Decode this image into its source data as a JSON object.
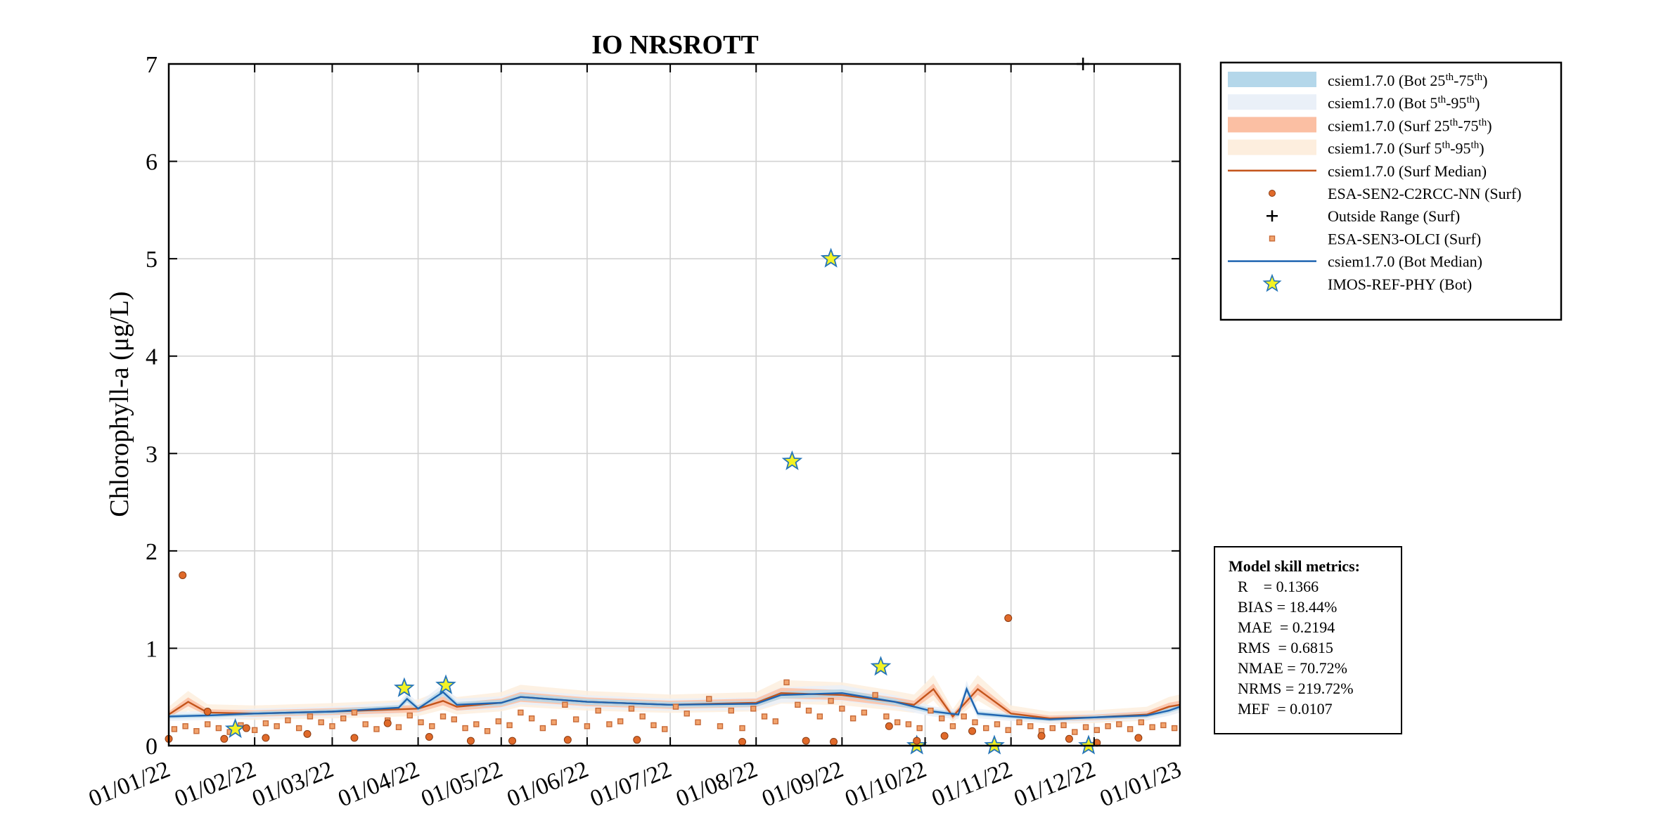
{
  "chart_data": {
    "type": "line",
    "title": "IO NRSROTT",
    "ylabel": "Chlorophyll-a (μg/L)",
    "xlabel": "",
    "ylim": [
      0,
      7
    ],
    "xlim": [
      "2022-01-01",
      "2023-01-01"
    ],
    "yticks": [
      "0",
      "1",
      "2",
      "3",
      "4",
      "5",
      "6",
      "7"
    ],
    "xticks": [
      "01/01/22",
      "01/02/22",
      "01/03/22",
      "01/04/22",
      "01/05/22",
      "01/06/22",
      "01/07/22",
      "01/08/22",
      "01/09/22",
      "01/10/22",
      "01/11/22",
      "01/12/22",
      "01/01/23"
    ],
    "grid": true,
    "legend_position": "outside-top-right",
    "colors": {
      "bot_iqr": "#b4d7ea",
      "bot_90": "#eaf0f8",
      "surf_iqr": "#fbbfa3",
      "surf_90": "#fdeede",
      "surf_median": "#c4541a",
      "s2_points": "#e06a2a",
      "s3_points": "#c76a38",
      "bot_median": "#1f64b0",
      "star_fill": "#f3f224",
      "star_edge": "#2474b8"
    },
    "legend": [
      {
        "label": "csiem1.7.0 (Bot 25",
        "sup1": "th",
        "mid": "-75",
        "sup2": "th",
        "end": ")",
        "kind": "band",
        "color": "#b4d7ea"
      },
      {
        "label": "csiem1.7.0 (Bot 5",
        "sup1": "th",
        "mid": "-95",
        "sup2": "th",
        "end": ")",
        "kind": "band",
        "color": "#eaf0f8"
      },
      {
        "label": "csiem1.7.0 (Surf 25",
        "sup1": "th",
        "mid": "-75",
        "sup2": "th",
        "end": ")",
        "kind": "band",
        "color": "#fbbfa3"
      },
      {
        "label": "csiem1.7.0 (Surf 5",
        "sup1": "th",
        "mid": "-95",
        "sup2": "th",
        "end": ")",
        "kind": "band",
        "color": "#fdeede"
      },
      {
        "label": "csiem1.7.0 (Surf Median)",
        "kind": "line",
        "color": "#c4541a"
      },
      {
        "label": "ESA-SEN2-C2RCC-NN (Surf)",
        "kind": "dot",
        "color": "#e06a2a"
      },
      {
        "label": "Outside Range (Surf)",
        "kind": "plus",
        "color": "#000000"
      },
      {
        "label": "ESA-SEN3-OLCI (Surf)",
        "kind": "square",
        "color": "#c76a38"
      },
      {
        "label": "csiem1.7.0 (Bot Median)",
        "kind": "line",
        "color": "#1f64b0"
      },
      {
        "label": "IMOS-REF-PHY (Bot)",
        "kind": "star",
        "color": "#f3f224"
      }
    ],
    "series": [
      {
        "name": "IMOS-REF-PHY (Bot)",
        "kind": "star",
        "x": [
          "2022-01-25",
          "2022-03-27",
          "2022-04-11",
          "2022-08-14",
          "2022-08-28",
          "2022-09-15",
          "2022-09-28",
          "2022-10-26",
          "2022-11-29"
        ],
        "y": [
          0.17,
          0.59,
          0.62,
          2.92,
          5.0,
          0.81,
          0.0,
          0.0,
          0.0
        ]
      },
      {
        "name": "ESA-SEN2-C2RCC-NN (Surf)",
        "kind": "dot",
        "x": [
          "2022-01-01",
          "2022-01-06",
          "2022-01-15",
          "2022-01-21",
          "2022-01-29",
          "2022-02-05",
          "2022-02-20",
          "2022-03-09",
          "2022-03-21",
          "2022-04-05",
          "2022-04-20",
          "2022-05-05",
          "2022-05-25",
          "2022-06-19",
          "2022-07-27",
          "2022-08-19",
          "2022-08-29",
          "2022-09-18",
          "2022-09-28",
          "2022-10-08",
          "2022-10-18",
          "2022-10-31",
          "2022-11-12",
          "2022-11-22",
          "2022-12-02",
          "2022-12-17"
        ],
        "y": [
          0.07,
          1.75,
          0.35,
          0.07,
          0.18,
          0.08,
          0.12,
          0.08,
          0.23,
          0.09,
          0.05,
          0.05,
          0.06,
          0.06,
          0.04,
          0.05,
          0.04,
          0.2,
          0.05,
          0.1,
          0.15,
          1.31,
          0.1,
          0.07,
          0.03,
          0.08
        ]
      },
      {
        "name": "Outside Range (Surf)",
        "kind": "plus",
        "x": [
          "2022-11-27"
        ],
        "y": [
          7.0
        ]
      },
      {
        "name": "ESA-SEN3-OLCI (Surf)",
        "kind": "square",
        "x": [
          "2022-01-03",
          "2022-01-07",
          "2022-01-11",
          "2022-01-15",
          "2022-01-19",
          "2022-01-23",
          "2022-01-27",
          "2022-02-01",
          "2022-02-05",
          "2022-02-09",
          "2022-02-13",
          "2022-02-17",
          "2022-02-21",
          "2022-02-25",
          "2022-03-01",
          "2022-03-05",
          "2022-03-09",
          "2022-03-13",
          "2022-03-17",
          "2022-03-21",
          "2022-03-25",
          "2022-03-29",
          "2022-04-02",
          "2022-04-06",
          "2022-04-10",
          "2022-04-14",
          "2022-04-18",
          "2022-04-22",
          "2022-04-26",
          "2022-04-30",
          "2022-05-04",
          "2022-05-08",
          "2022-05-12",
          "2022-05-16",
          "2022-05-20",
          "2022-05-24",
          "2022-05-28",
          "2022-06-01",
          "2022-06-05",
          "2022-06-09",
          "2022-06-13",
          "2022-06-17",
          "2022-06-21",
          "2022-06-25",
          "2022-06-29",
          "2022-07-03",
          "2022-07-07",
          "2022-07-11",
          "2022-07-15",
          "2022-07-19",
          "2022-07-23",
          "2022-07-27",
          "2022-07-31",
          "2022-08-04",
          "2022-08-08",
          "2022-08-12",
          "2022-08-16",
          "2022-08-20",
          "2022-08-24",
          "2022-08-28",
          "2022-09-01",
          "2022-09-05",
          "2022-09-09",
          "2022-09-13",
          "2022-09-17",
          "2022-09-21",
          "2022-09-25",
          "2022-09-29",
          "2022-10-03",
          "2022-10-07",
          "2022-10-11",
          "2022-10-15",
          "2022-10-19",
          "2022-10-23",
          "2022-10-27",
          "2022-10-31",
          "2022-11-04",
          "2022-11-08",
          "2022-11-12",
          "2022-11-16",
          "2022-11-20",
          "2022-11-24",
          "2022-11-28",
          "2022-12-02",
          "2022-12-06",
          "2022-12-10",
          "2022-12-14",
          "2022-12-18",
          "2022-12-22",
          "2022-12-26",
          "2022-12-30"
        ],
        "y": [
          0.17,
          0.2,
          0.15,
          0.22,
          0.18,
          0.14,
          0.21,
          0.16,
          0.23,
          0.2,
          0.26,
          0.18,
          0.3,
          0.24,
          0.2,
          0.28,
          0.34,
          0.22,
          0.17,
          0.26,
          0.19,
          0.31,
          0.24,
          0.2,
          0.3,
          0.27,
          0.18,
          0.22,
          0.15,
          0.25,
          0.21,
          0.34,
          0.28,
          0.18,
          0.24,
          0.42,
          0.27,
          0.2,
          0.36,
          0.22,
          0.25,
          0.38,
          0.3,
          0.21,
          0.17,
          0.4,
          0.33,
          0.24,
          0.48,
          0.2,
          0.36,
          0.18,
          0.38,
          0.3,
          0.25,
          0.65,
          0.42,
          0.36,
          0.3,
          0.46,
          0.38,
          0.28,
          0.34,
          0.52,
          0.3,
          0.24,
          0.22,
          0.18,
          0.36,
          0.28,
          0.2,
          0.3,
          0.24,
          0.18,
          0.22,
          0.16,
          0.24,
          0.2,
          0.15,
          0.18,
          0.21,
          0.14,
          0.19,
          0.16,
          0.2,
          0.22,
          0.17,
          0.24,
          0.19,
          0.21,
          0.18
        ]
      },
      {
        "name": "csiem1.7.0 (Surf Median)",
        "kind": "line",
        "x": [
          "2022-01-01",
          "2022-01-08",
          "2022-01-15",
          "2022-02-01",
          "2022-03-01",
          "2022-04-01",
          "2022-04-10",
          "2022-04-15",
          "2022-05-01",
          "2022-05-08",
          "2022-06-01",
          "2022-07-01",
          "2022-08-01",
          "2022-08-10",
          "2022-09-01",
          "2022-09-20",
          "2022-09-27",
          "2022-10-04",
          "2022-10-11",
          "2022-10-20",
          "2022-11-01",
          "2022-11-15",
          "2022-12-01",
          "2022-12-20",
          "2022-12-28",
          "2023-01-01"
        ],
        "y": [
          0.32,
          0.45,
          0.34,
          0.33,
          0.35,
          0.38,
          0.46,
          0.4,
          0.44,
          0.5,
          0.45,
          0.42,
          0.44,
          0.54,
          0.52,
          0.45,
          0.42,
          0.58,
          0.3,
          0.58,
          0.33,
          0.28,
          0.29,
          0.32,
          0.4,
          0.42
        ]
      },
      {
        "name": "csiem1.7.0 (Bot Median)",
        "kind": "line",
        "x": [
          "2022-01-01",
          "2022-01-15",
          "2022-02-01",
          "2022-03-01",
          "2022-03-25",
          "2022-03-28",
          "2022-04-01",
          "2022-04-10",
          "2022-04-15",
          "2022-05-01",
          "2022-05-08",
          "2022-06-01",
          "2022-07-01",
          "2022-08-01",
          "2022-08-10",
          "2022-09-01",
          "2022-09-20",
          "2022-10-04",
          "2022-10-13",
          "2022-10-16",
          "2022-10-20",
          "2022-11-01",
          "2022-11-15",
          "2022-12-01",
          "2022-12-20",
          "2022-12-28",
          "2023-01-01"
        ],
        "y": [
          0.3,
          0.31,
          0.33,
          0.35,
          0.39,
          0.48,
          0.38,
          0.55,
          0.42,
          0.44,
          0.5,
          0.45,
          0.42,
          0.43,
          0.52,
          0.54,
          0.45,
          0.35,
          0.32,
          0.58,
          0.33,
          0.3,
          0.27,
          0.29,
          0.31,
          0.36,
          0.4
        ]
      }
    ],
    "skill_metrics": {
      "title": "Model skill metrics:",
      "lines": [
        "R    = 0.1366",
        "BIAS = 18.44%",
        "MAE  = 0.2194",
        "RMS  = 0.6815",
        "NMAE = 70.72%",
        "NRMS = 219.72%",
        "MEF  = 0.0107"
      ]
    }
  }
}
